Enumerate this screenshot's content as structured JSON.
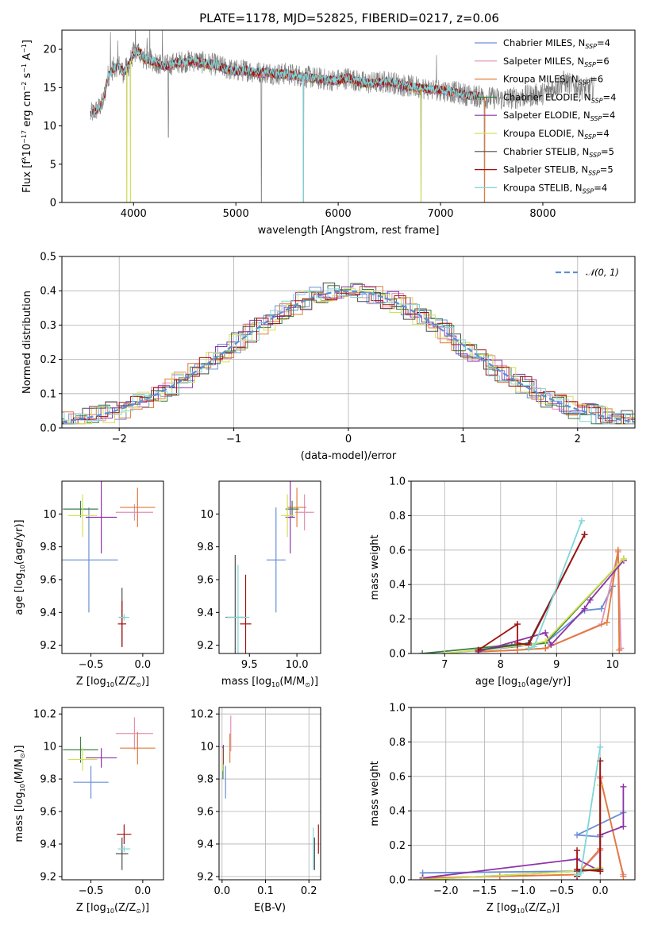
{
  "page": {
    "title": "PLATE=1178, MJD=52825, FIBERID=0217, z=0.06"
  },
  "colors": {
    "Chabrier MILES": "#6a8fd6",
    "Salpeter MILES": "#e38fb2",
    "Kroupa MILES": "#e27a3a",
    "Chabrier ELODIE": "#3f7f45",
    "Salpeter ELODIE": "#8e33a8",
    "Kroupa ELODIE": "#d4e157",
    "Chabrier STELIB": "#4d4d4d",
    "Salpeter STELIB": "#a30f0f",
    "Kroupa STELIB": "#7fd6d8",
    "gaussian": "#5b8ed6",
    "data": "#808080"
  },
  "chart_data": [
    {
      "id": "spectrum",
      "type": "line",
      "title": "PLATE=1178, MJD=52825, FIBERID=0217, z=0.06",
      "xlabel": "wavelength [Angstrom, rest frame]",
      "ylabel_parts": [
        "Flux [f",
        "λ",
        "10",
        "−17",
        " erg cm",
        "−2",
        " s",
        "−1",
        " A",
        "−1",
        "]"
      ],
      "xlim": [
        3300,
        8900
      ],
      "ylim": [
        0,
        22.5
      ],
      "xticks": [
        4000,
        5000,
        6000,
        7000,
        8000
      ],
      "yticks": [
        0,
        5,
        10,
        15,
        20
      ],
      "grid": false,
      "legend_position": "top-right",
      "legend": [
        {
          "name": "Chabrier MILES",
          "nssp": "4"
        },
        {
          "name": "Salpeter MILES",
          "nssp": "6"
        },
        {
          "name": "Kroupa MILES",
          "nssp": "6"
        },
        {
          "name": "Chabrier ELODIE",
          "nssp": "4"
        },
        {
          "name": "Salpeter ELODIE",
          "nssp": "4"
        },
        {
          "name": "Kroupa ELODIE",
          "nssp": "4"
        },
        {
          "name": "Chabrier STELIB",
          "nssp": "5"
        },
        {
          "name": "Salpeter STELIB",
          "nssp": "5"
        },
        {
          "name": "Kroupa STELIB",
          "nssp": "4"
        }
      ],
      "data_continuum": {
        "x": [
          3580,
          3650,
          3700,
          3750,
          3800,
          3850,
          3900,
          3950,
          4000,
          4050,
          4100,
          4200,
          4300,
          4400,
          4500,
          4600,
          4700,
          4800,
          4900,
          5000,
          5100,
          5200,
          5300,
          5400,
          5500,
          5600,
          5700,
          5800,
          5900,
          6000,
          6100,
          6200,
          6300,
          6400,
          6500,
          6600,
          6700,
          6800,
          6900,
          7000,
          7100,
          7200,
          7300,
          7400,
          7600,
          7800,
          8000,
          8200,
          8400,
          8500
        ],
        "y": [
          11.5,
          12.2,
          13.0,
          16.5,
          17.5,
          18.0,
          17.0,
          17.8,
          19.5,
          19.8,
          18.8,
          18.5,
          17.8,
          18.2,
          18.4,
          18.5,
          18.2,
          18.0,
          17.5,
          17.2,
          17.3,
          17.0,
          17.0,
          16.8,
          16.8,
          16.6,
          16.4,
          16.2,
          16.0,
          16.0,
          16.3,
          15.8,
          15.6,
          15.7,
          15.8,
          15.4,
          15.2,
          15.0,
          14.8,
          14.7,
          14.5,
          14.2,
          14.0,
          13.8,
          13.5,
          13.8,
          14.2,
          15.8,
          14.8,
          15.0
        ]
      },
      "data_dips": [
        {
          "x": 3934,
          "y": 0
        },
        {
          "x": 4340,
          "y": 8.5
        },
        {
          "x": 5250,
          "y": 0
        },
        {
          "x": 5660,
          "y": 0
        },
        {
          "x": 6810,
          "y": 0
        },
        {
          "x": 7430,
          "y": 0
        },
        {
          "x": 3970,
          "y": 4.5
        }
      ]
    },
    {
      "id": "residuals",
      "type": "line",
      "xlabel": "(data-model)/error",
      "ylabel": "Normed distribution",
      "xlim": [
        -2.5,
        2.5
      ],
      "ylim": [
        0,
        0.5
      ],
      "xticks": [
        -2,
        -1,
        0,
        1,
        2
      ],
      "xtick_labels": [
        "−2",
        "−1",
        "0",
        "1",
        "2"
      ],
      "yticks": [
        0.0,
        0.1,
        0.2,
        0.3,
        0.4,
        0.5
      ],
      "ytick_labels": [
        "0.0",
        "0.1",
        "0.2",
        "0.3",
        "0.4",
        "0.5"
      ],
      "grid": true,
      "legend_position": "top-right",
      "gaussian_label": "𝒩(0, 1)"
    },
    {
      "id": "age-vs-z",
      "type": "scatter",
      "xlabel_parts": [
        "Z [log",
        "10",
        "(Z/Z",
        "⊙",
        ")]"
      ],
      "ylabel_parts": [
        "age  [log",
        "10",
        "(age/yr)]"
      ],
      "xlim": [
        -0.78,
        0.2
      ],
      "ylim": [
        9.15,
        10.2
      ],
      "xticks": [
        -0.5,
        0.0
      ],
      "xtick_labels": [
        "−0.5",
        "0.0"
      ],
      "yticks": [
        9.2,
        9.4,
        9.6,
        9.8,
        10.0
      ],
      "grid": false,
      "points": [
        {
          "series": "Chabrier MILES",
          "x": -0.52,
          "y": 9.72,
          "xerr": 0.28,
          "yerr": 0.32
        },
        {
          "series": "Salpeter MILES",
          "x": -0.08,
          "y": 10.01,
          "xerr": 0.18,
          "yerr": 0.05
        },
        {
          "series": "Kroupa MILES",
          "x": -0.05,
          "y": 10.04,
          "xerr": 0.17,
          "yerr": 0.12
        },
        {
          "series": "Chabrier ELODIE",
          "x": -0.6,
          "y": 10.03,
          "xerr": 0.17,
          "yerr": 0.05
        },
        {
          "series": "Salpeter ELODIE",
          "x": -0.4,
          "y": 9.98,
          "xerr": 0.15,
          "yerr": 0.22
        },
        {
          "series": "Kroupa ELODIE",
          "x": -0.58,
          "y": 9.99,
          "xerr": 0.14,
          "yerr": 0.13
        },
        {
          "series": "Chabrier STELIB",
          "x": -0.2,
          "y": 9.37,
          "xerr": 0.03,
          "yerr": 0.18
        },
        {
          "series": "Salpeter STELIB",
          "x": -0.2,
          "y": 9.33,
          "xerr": 0.04,
          "yerr": 0.14
        },
        {
          "series": "Kroupa STELIB",
          "x": -0.18,
          "y": 9.37,
          "xerr": 0.05,
          "yerr": 0.02
        }
      ]
    },
    {
      "id": "age-vs-mass",
      "type": "scatter",
      "xlabel_parts": [
        "mass [log",
        "10",
        "(M/M",
        "⊙",
        ")]"
      ],
      "xlim": [
        9.18,
        10.25
      ],
      "ylim": [
        9.15,
        10.2
      ],
      "xticks": [
        9.5,
        10.0
      ],
      "xtick_labels": [
        "9.5",
        "10.0"
      ],
      "yticks": [
        9.2,
        9.4,
        9.6,
        9.8,
        10.0
      ],
      "grid": false,
      "points": [
        {
          "series": "Chabrier MILES",
          "x": 9.78,
          "y": 9.72,
          "xerr": 0.1,
          "yerr": 0.32
        },
        {
          "series": "Salpeter MILES",
          "x": 10.08,
          "y": 10.01,
          "xerr": 0.1,
          "yerr": 0.11
        },
        {
          "series": "Kroupa MILES",
          "x": 10.0,
          "y": 10.04,
          "xerr": 0.1,
          "yerr": 0.12
        },
        {
          "series": "Chabrier ELODIE",
          "x": 9.95,
          "y": 10.03,
          "xerr": 0.07,
          "yerr": 0.05
        },
        {
          "series": "Salpeter ELODIE",
          "x": 9.93,
          "y": 9.98,
          "xerr": 0.05,
          "yerr": 0.22
        },
        {
          "series": "Kroupa ELODIE",
          "x": 9.9,
          "y": 9.99,
          "xerr": 0.07,
          "yerr": 0.13
        },
        {
          "series": "Chabrier STELIB",
          "x": 9.35,
          "y": 9.37,
          "xerr": 0.1,
          "yerr": 0.38
        },
        {
          "series": "Salpeter STELIB",
          "x": 9.46,
          "y": 9.33,
          "xerr": 0.06,
          "yerr": 0.3
        },
        {
          "series": "Kroupa STELIB",
          "x": 9.38,
          "y": 9.37,
          "xerr": 0.12,
          "yerr": 0.32
        }
      ]
    },
    {
      "id": "weight-vs-age",
      "type": "line",
      "xlabel_parts": [
        "age  [log",
        "10",
        "(age/yr)]"
      ],
      "ylabel": "mass weight",
      "xlim": [
        6.4,
        10.4
      ],
      "ylim": [
        0,
        1.0
      ],
      "xticks": [
        7,
        8,
        9,
        10
      ],
      "yticks": [
        0.0,
        0.2,
        0.4,
        0.6,
        0.8,
        1.0
      ],
      "ytick_labels": [
        "0.0",
        "0.2",
        "0.4",
        "0.6",
        "0.8",
        "1.0"
      ],
      "grid": true
    },
    {
      "id": "mass-vs-z",
      "type": "scatter",
      "xlabel_parts": [
        "Z [log",
        "10",
        "(Z/Z",
        "⊙",
        ")]"
      ],
      "ylabel_parts": [
        "mass [log",
        "10",
        "(M/M",
        "⊙",
        ")]"
      ],
      "xlim": [
        -0.78,
        0.2
      ],
      "ylim": [
        9.18,
        10.24
      ],
      "xticks": [
        -0.5,
        0.0
      ],
      "xtick_labels": [
        "−0.5",
        "0.0"
      ],
      "yticks": [
        9.2,
        9.4,
        9.6,
        9.8,
        10.0,
        10.2
      ],
      "grid": false,
      "points": [
        {
          "series": "Chabrier MILES",
          "x": -0.5,
          "y": 9.78,
          "xerr": 0.17,
          "yerr": 0.1
        },
        {
          "series": "Salpeter MILES",
          "x": -0.08,
          "y": 10.08,
          "xerr": 0.18,
          "yerr": 0.1
        },
        {
          "series": "Kroupa MILES",
          "x": -0.05,
          "y": 9.99,
          "xerr": 0.17,
          "yerr": 0.1
        },
        {
          "series": "Chabrier ELODIE",
          "x": -0.6,
          "y": 9.98,
          "xerr": 0.17,
          "yerr": 0.08
        },
        {
          "series": "Salpeter ELODIE",
          "x": -0.4,
          "y": 9.93,
          "xerr": 0.15,
          "yerr": 0.06
        },
        {
          "series": "Kroupa ELODIE",
          "x": -0.58,
          "y": 9.92,
          "xerr": 0.14,
          "yerr": 0.07
        },
        {
          "series": "Chabrier STELIB",
          "x": -0.2,
          "y": 9.34,
          "xerr": 0.06,
          "yerr": 0.1
        },
        {
          "series": "Salpeter STELIB",
          "x": -0.18,
          "y": 9.46,
          "xerr": 0.07,
          "yerr": 0.06
        },
        {
          "series": "Kroupa STELIB",
          "x": -0.18,
          "y": 9.37,
          "xerr": 0.06,
          "yerr": 0.02
        }
      ]
    },
    {
      "id": "mass-vs-ebv",
      "type": "scatter",
      "xlabel": "E(B-V)",
      "xlim": [
        -0.007,
        0.227
      ],
      "ylim": [
        9.18,
        10.24
      ],
      "xticks": [
        0.0,
        0.1,
        0.2
      ],
      "xtick_labels": [
        "0.0",
        "0.1",
        "0.2"
      ],
      "yticks": [
        9.2,
        9.4,
        9.6,
        9.8,
        10.0,
        10.2
      ],
      "grid": true,
      "points": [
        {
          "series": "Chabrier MILES",
          "x": 0.008,
          "y": 9.78,
          "xerr": 0.0,
          "yerr": 0.1
        },
        {
          "series": "Salpeter MILES",
          "x": 0.02,
          "y": 10.08,
          "xerr": 0.0,
          "yerr": 0.11
        },
        {
          "series": "Kroupa MILES",
          "x": 0.018,
          "y": 9.99,
          "xerr": 0.0,
          "yerr": 0.09
        },
        {
          "series": "Chabrier ELODIE",
          "x": 0.002,
          "y": 9.9,
          "xerr": 0.0,
          "yerr": 0.1
        },
        {
          "series": "Salpeter ELODIE",
          "x": 0.003,
          "y": 9.95,
          "xerr": 0.0,
          "yerr": 0.06
        },
        {
          "series": "Kroupa ELODIE",
          "x": 0.001,
          "y": 9.92,
          "xerr": 0.0,
          "yerr": 0.07
        },
        {
          "series": "Chabrier STELIB",
          "x": 0.213,
          "y": 9.34,
          "xerr": 0.0,
          "yerr": 0.1
        },
        {
          "series": "Salpeter STELIB",
          "x": 0.222,
          "y": 9.43,
          "xerr": 0.0,
          "yerr": 0.09
        },
        {
          "series": "Kroupa STELIB",
          "x": 0.21,
          "y": 9.37,
          "xerr": 0.0,
          "yerr": 0.13
        }
      ]
    },
    {
      "id": "weight-vs-z",
      "type": "line",
      "xlabel_parts": [
        "Z [log",
        "10",
        "(Z/Z",
        "⊙",
        ")]"
      ],
      "ylabel": "mass weight",
      "xlim": [
        -2.45,
        0.45
      ],
      "ylim": [
        0,
        1.0
      ],
      "xticks": [
        -2.0,
        -1.5,
        -1.0,
        -0.5,
        0.0
      ],
      "xtick_labels": [
        "−2.0",
        "−1.5",
        "−1.0",
        "−0.5",
        "0.0"
      ],
      "yticks": [
        0.0,
        0.2,
        0.4,
        0.6,
        0.8,
        1.0
      ],
      "ytick_labels": [
        "0.0",
        "0.2",
        "0.4",
        "0.6",
        "0.8",
        "1.0"
      ],
      "grid": true
    }
  ],
  "ssp_series": [
    {
      "name": "Chabrier MILES",
      "age": [
        7.0,
        8.3,
        8.5,
        8.8,
        9.5,
        9.8,
        10.0
      ],
      "z": [
        -2.3,
        -2.3,
        -0.3,
        0.0,
        0.0,
        -0.3,
        0.3
      ],
      "w": [
        0.0,
        0.04,
        0.05,
        0.06,
        0.25,
        0.26,
        0.39
      ]
    },
    {
      "name": "Salpeter MILES",
      "age": [
        7.6,
        8.3,
        8.8,
        9.8,
        10.1,
        10.15
      ],
      "z": [
        -2.3,
        -1.3,
        -0.3,
        0.0,
        0.0,
        0.3
      ],
      "w": [
        0.01,
        0.02,
        0.03,
        0.17,
        0.59,
        0.03
      ]
    },
    {
      "name": "Kroupa MILES",
      "age": [
        7.6,
        8.3,
        8.8,
        9.9,
        10.1,
        10.12
      ],
      "z": [
        -2.3,
        -1.3,
        -0.3,
        0.0,
        0.0,
        0.3
      ],
      "w": [
        0.01,
        0.02,
        0.03,
        0.18,
        0.6,
        0.02
      ]
    },
    {
      "name": "Chabrier ELODIE",
      "age": [
        6.6,
        8.2,
        8.8,
        10.2
      ],
      "z": [
        -2.3,
        -0.3,
        0.0,
        0.0
      ],
      "w": [
        0.0,
        0.05,
        0.06,
        0.55
      ]
    },
    {
      "name": "Salpeter ELODIE",
      "age": [
        7.6,
        8.8,
        8.9,
        9.5,
        9.6,
        10.2
      ],
      "z": [
        -2.3,
        -0.3,
        0.0,
        0.0,
        0.3,
        0.3
      ],
      "w": [
        0.01,
        0.12,
        0.05,
        0.26,
        0.31,
        0.54
      ]
    },
    {
      "name": "Kroupa ELODIE",
      "age": [
        7.0,
        8.5,
        8.8,
        10.2
      ],
      "z": [
        -2.3,
        -0.3,
        0.0,
        0.0
      ],
      "w": [
        0.0,
        0.05,
        0.07,
        0.55
      ]
    },
    {
      "name": "Chabrier STELIB",
      "age": [
        7.6,
        8.3,
        8.5,
        9.5
      ],
      "z": [
        -0.3,
        -0.3,
        0.0,
        0.0
      ],
      "w": [
        0.02,
        0.05,
        0.06,
        0.69
      ]
    },
    {
      "name": "Salpeter STELIB",
      "age": [
        7.6,
        8.3,
        8.3,
        8.5,
        9.5
      ],
      "z": [
        -0.3,
        -0.3,
        -0.3,
        0.0,
        0.0
      ],
      "w": [
        0.02,
        0.17,
        0.06,
        0.05,
        0.69
      ]
    },
    {
      "name": "Kroupa STELIB",
      "age": [
        8.5,
        8.6,
        9.45
      ],
      "z": [
        -0.3,
        -0.25,
        0.0
      ],
      "w": [
        0.03,
        0.04,
        0.77
      ]
    }
  ]
}
